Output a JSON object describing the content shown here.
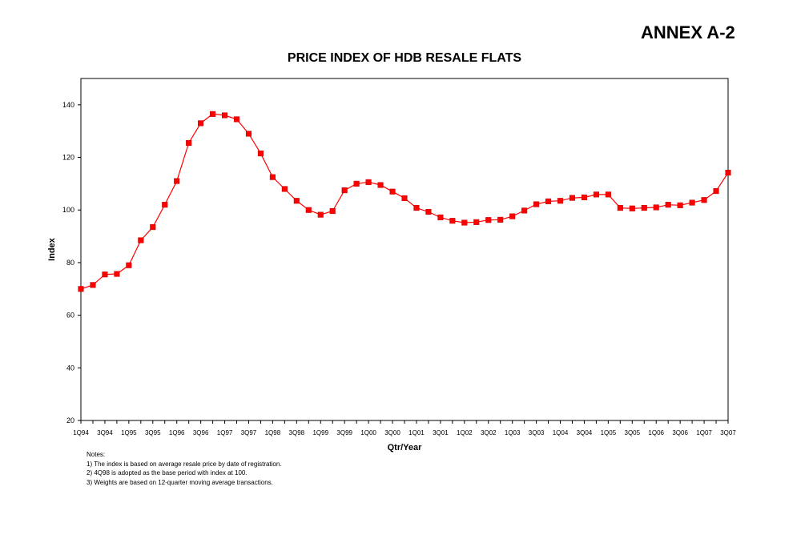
{
  "annex_label": "ANNEX A-2",
  "series_color": "#ff0000",
  "notes": {
    "heading": "Notes:",
    "lines": [
      "1) The index  is based on average resale price by date of registration.",
      "2) 4Q98 is adopted as the base period with index at 100.",
      "3) Weights are based on 12-quarter moving average transactions."
    ]
  },
  "chart_data": {
    "type": "line",
    "title": "PRICE INDEX OF HDB RESALE FLATS",
    "xlabel": "Qtr/Year",
    "ylabel": "Index",
    "ylim": [
      20,
      150
    ],
    "yticks": [
      20,
      40,
      60,
      80,
      100,
      120,
      140
    ],
    "x": [
      "1Q94",
      "2Q94",
      "3Q94",
      "4Q94",
      "1Q95",
      "2Q95",
      "3Q95",
      "4Q95",
      "1Q96",
      "2Q96",
      "3Q96",
      "4Q96",
      "1Q97",
      "2Q97",
      "3Q97",
      "4Q97",
      "1Q98",
      "2Q98",
      "3Q98",
      "4Q98",
      "1Q99",
      "2Q99",
      "3Q99",
      "4Q99",
      "1Q00",
      "2Q00",
      "3Q00",
      "4Q00",
      "1Q01",
      "2Q01",
      "3Q01",
      "4Q01",
      "1Q02",
      "2Q02",
      "3Q02",
      "4Q02",
      "1Q03",
      "2Q03",
      "3Q03",
      "4Q03",
      "1Q04",
      "2Q04",
      "3Q04",
      "4Q04",
      "1Q05",
      "2Q05",
      "3Q05",
      "4Q05",
      "1Q06",
      "2Q06",
      "3Q06",
      "4Q06",
      "1Q07",
      "2Q07",
      "3Q07"
    ],
    "xtick_labels": [
      "1Q94",
      "3Q94",
      "1Q95",
      "3Q95",
      "1Q96",
      "3Q96",
      "1Q97",
      "3Q97",
      "1Q98",
      "3Q98",
      "1Q99",
      "3Q99",
      "1Q00",
      "3Q00",
      "1Q01",
      "3Q01",
      "1Q02",
      "3Q02",
      "1Q03",
      "3Q03",
      "1Q04",
      "3Q04",
      "1Q05",
      "3Q05",
      "1Q06",
      "3Q06",
      "1Q07",
      "3Q07"
    ],
    "series": [
      {
        "values": [
          70,
          71.5,
          75.5,
          75.7,
          79,
          88.5,
          93.5,
          102,
          111,
          125.5,
          133,
          136.5,
          136,
          134.5,
          129,
          121.5,
          112.5,
          108,
          103.5,
          100,
          98.2,
          99.6,
          107.5,
          110,
          110.6,
          109.5,
          107,
          104.5,
          100.8,
          99.3,
          97.2,
          95.9,
          95.2,
          95.4,
          96.2,
          96.3,
          97.6,
          99.8,
          102.2,
          103.3,
          103.5,
          104.6,
          104.8,
          105.9,
          105.9,
          100.8,
          100.6,
          100.8,
          101,
          102,
          101.8,
          102.8,
          103.8,
          107.2,
          114.2
        ]
      }
    ],
    "grid": false,
    "legend": "none"
  }
}
